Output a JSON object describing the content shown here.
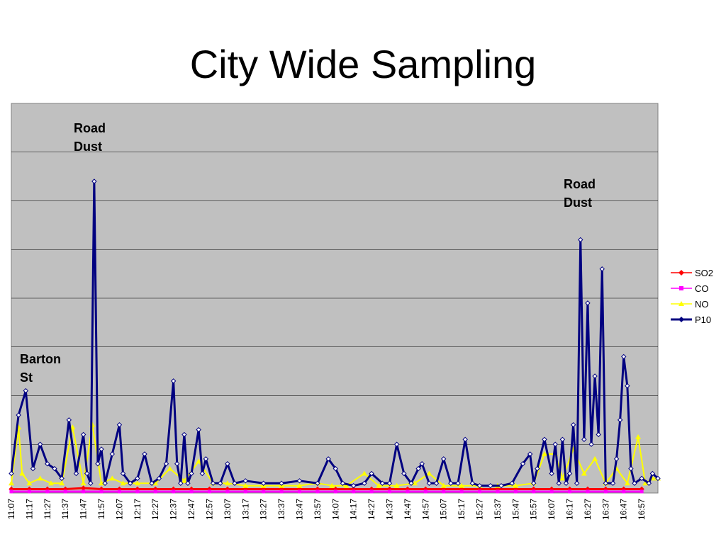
{
  "page": {
    "title": "City Wide Sampling"
  },
  "chart_data": {
    "type": "line",
    "title": "City Wide Sampling",
    "xlabel": "",
    "ylabel": "",
    "grid": true,
    "legend_position": "right",
    "ylim": [
      0,
      800
    ],
    "categories": [
      "11:07",
      "11:17",
      "11:27",
      "11:37",
      "11:47",
      "11:57",
      "12:07",
      "12:17",
      "12:27",
      "12:37",
      "12:47",
      "12:57",
      "13:07",
      "13:17",
      "13:27",
      "13:37",
      "13:47",
      "13:57",
      "14:07",
      "14:17",
      "14:27",
      "14:37",
      "14:47",
      "14:57",
      "15:07",
      "15:17",
      "15:27",
      "15:37",
      "15:47",
      "15:57",
      "16:07",
      "16:17",
      "16:27",
      "16:37",
      "16:47",
      "16:57"
    ],
    "annotations": [
      {
        "lines": [
          "Road",
          "Dust"
        ],
        "category": "11:49"
      },
      {
        "lines": [
          "Road",
          "Dust"
        ],
        "category": "16:24"
      },
      {
        "lines": [
          "Barton",
          "St"
        ],
        "category": "11:10"
      }
    ],
    "series": [
      {
        "name": "SO2",
        "color": "#ff0000",
        "marker": "diamond",
        "values": [
          [
            0,
            8
          ],
          [
            10,
            8
          ],
          [
            20,
            8
          ],
          [
            30,
            8
          ],
          [
            40,
            10
          ],
          [
            50,
            8
          ],
          [
            60,
            8
          ],
          [
            70,
            8
          ],
          [
            80,
            8
          ],
          [
            90,
            8
          ],
          [
            100,
            8
          ],
          [
            110,
            8
          ],
          [
            120,
            8
          ],
          [
            130,
            8
          ],
          [
            140,
            8
          ],
          [
            150,
            8
          ],
          [
            160,
            8
          ],
          [
            170,
            8
          ],
          [
            180,
            8
          ],
          [
            190,
            8
          ],
          [
            200,
            8
          ],
          [
            210,
            8
          ],
          [
            220,
            8
          ],
          [
            230,
            8
          ],
          [
            240,
            8
          ],
          [
            250,
            8
          ],
          [
            260,
            8
          ],
          [
            270,
            8
          ],
          [
            280,
            8
          ],
          [
            290,
            8
          ],
          [
            300,
            8
          ],
          [
            310,
            8
          ],
          [
            320,
            8
          ],
          [
            330,
            8
          ],
          [
            340,
            8
          ],
          [
            350,
            8
          ]
        ]
      },
      {
        "name": "CO",
        "color": "#ff00ff",
        "marker": "square",
        "values": [
          [
            0,
            3
          ],
          [
            10,
            3
          ],
          [
            20,
            3
          ],
          [
            30,
            3
          ],
          [
            40,
            3
          ],
          [
            50,
            3
          ],
          [
            60,
            3
          ],
          [
            70,
            3
          ],
          [
            80,
            3
          ],
          [
            90,
            3
          ],
          [
            100,
            3
          ],
          [
            110,
            3
          ],
          [
            120,
            3
          ],
          [
            130,
            3
          ],
          [
            140,
            3
          ],
          [
            150,
            3
          ],
          [
            160,
            3
          ],
          [
            170,
            3
          ],
          [
            180,
            3
          ],
          [
            190,
            3
          ],
          [
            200,
            3
          ],
          [
            210,
            3
          ],
          [
            220,
            3
          ],
          [
            230,
            3
          ],
          [
            240,
            3
          ],
          [
            250,
            3
          ],
          [
            260,
            3
          ],
          [
            270,
            3
          ],
          [
            280,
            3
          ],
          [
            290,
            3
          ],
          [
            300,
            3
          ],
          [
            310,
            3
          ],
          [
            320,
            3
          ],
          [
            330,
            3
          ],
          [
            340,
            3
          ],
          [
            350,
            3
          ]
        ]
      },
      {
        "name": "NO",
        "color": "#ffff00",
        "marker": "triangle",
        "values": [
          [
            0,
            20
          ],
          [
            4,
            135
          ],
          [
            6,
            40
          ],
          [
            10,
            20
          ],
          [
            16,
            30
          ],
          [
            22,
            20
          ],
          [
            28,
            20
          ],
          [
            34,
            135
          ],
          [
            40,
            20
          ],
          [
            45,
            140
          ],
          [
            50,
            20
          ],
          [
            56,
            30
          ],
          [
            62,
            20
          ],
          [
            70,
            20
          ],
          [
            80,
            20
          ],
          [
            88,
            50
          ],
          [
            96,
            25
          ],
          [
            104,
            65
          ],
          [
            112,
            20
          ],
          [
            120,
            20
          ],
          [
            130,
            15
          ],
          [
            140,
            15
          ],
          [
            150,
            15
          ],
          [
            160,
            15
          ],
          [
            170,
            20
          ],
          [
            178,
            15
          ],
          [
            186,
            15
          ],
          [
            196,
            40
          ],
          [
            204,
            15
          ],
          [
            214,
            15
          ],
          [
            224,
            20
          ],
          [
            232,
            40
          ],
          [
            240,
            15
          ],
          [
            250,
            15
          ],
          [
            260,
            15
          ],
          [
            270,
            15
          ],
          [
            280,
            15
          ],
          [
            290,
            20
          ],
          [
            296,
            80
          ],
          [
            302,
            80
          ],
          [
            306,
            30
          ],
          [
            312,
            90
          ],
          [
            318,
            40
          ],
          [
            324,
            70
          ],
          [
            330,
            20
          ],
          [
            336,
            50
          ],
          [
            342,
            20
          ],
          [
            348,
            115
          ],
          [
            352,
            20
          ],
          [
            356,
            30
          ],
          [
            359,
            30
          ]
        ]
      },
      {
        "name": "P10",
        "color": "#000080",
        "marker": "diamond",
        "values": [
          [
            0,
            40
          ],
          [
            4,
            160
          ],
          [
            8,
            210
          ],
          [
            12,
            50
          ],
          [
            16,
            100
          ],
          [
            20,
            60
          ],
          [
            24,
            50
          ],
          [
            28,
            30
          ],
          [
            32,
            150
          ],
          [
            36,
            40
          ],
          [
            40,
            120
          ],
          [
            42,
            40
          ],
          [
            44,
            20
          ],
          [
            46,
            640
          ],
          [
            48,
            60
          ],
          [
            50,
            90
          ],
          [
            52,
            20
          ],
          [
            56,
            80
          ],
          [
            60,
            140
          ],
          [
            62,
            40
          ],
          [
            66,
            20
          ],
          [
            70,
            30
          ],
          [
            74,
            80
          ],
          [
            78,
            20
          ],
          [
            82,
            30
          ],
          [
            86,
            60
          ],
          [
            90,
            230
          ],
          [
            92,
            60
          ],
          [
            94,
            20
          ],
          [
            96,
            120
          ],
          [
            98,
            20
          ],
          [
            100,
            40
          ],
          [
            104,
            130
          ],
          [
            106,
            40
          ],
          [
            108,
            70
          ],
          [
            112,
            20
          ],
          [
            116,
            20
          ],
          [
            120,
            60
          ],
          [
            124,
            20
          ],
          [
            130,
            25
          ],
          [
            140,
            20
          ],
          [
            150,
            20
          ],
          [
            160,
            25
          ],
          [
            170,
            20
          ],
          [
            176,
            70
          ],
          [
            180,
            50
          ],
          [
            184,
            20
          ],
          [
            190,
            15
          ],
          [
            196,
            20
          ],
          [
            200,
            40
          ],
          [
            206,
            20
          ],
          [
            210,
            20
          ],
          [
            214,
            100
          ],
          [
            218,
            40
          ],
          [
            222,
            20
          ],
          [
            226,
            50
          ],
          [
            228,
            60
          ],
          [
            232,
            20
          ],
          [
            236,
            20
          ],
          [
            240,
            70
          ],
          [
            244,
            20
          ],
          [
            248,
            20
          ],
          [
            252,
            110
          ],
          [
            256,
            20
          ],
          [
            260,
            15
          ],
          [
            266,
            15
          ],
          [
            272,
            15
          ],
          [
            278,
            20
          ],
          [
            284,
            60
          ],
          [
            288,
            80
          ],
          [
            290,
            20
          ],
          [
            292,
            50
          ],
          [
            296,
            110
          ],
          [
            300,
            40
          ],
          [
            302,
            100
          ],
          [
            304,
            20
          ],
          [
            306,
            110
          ],
          [
            308,
            20
          ],
          [
            310,
            40
          ],
          [
            312,
            140
          ],
          [
            314,
            20
          ],
          [
            316,
            520
          ],
          [
            318,
            110
          ],
          [
            320,
            390
          ],
          [
            322,
            100
          ],
          [
            324,
            240
          ],
          [
            326,
            120
          ],
          [
            328,
            460
          ],
          [
            330,
            20
          ],
          [
            334,
            20
          ],
          [
            336,
            70
          ],
          [
            338,
            150
          ],
          [
            340,
            280
          ],
          [
            342,
            220
          ],
          [
            344,
            50
          ],
          [
            346,
            20
          ],
          [
            350,
            30
          ],
          [
            354,
            20
          ],
          [
            356,
            40
          ],
          [
            359,
            30
          ]
        ]
      }
    ]
  }
}
